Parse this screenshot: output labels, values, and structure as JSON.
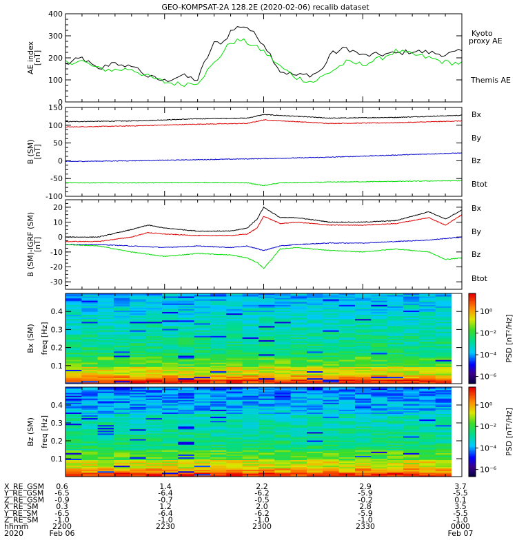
{
  "title": "GEO-KOMPSAT-2A 128.2E (2020-02-06) recalib dataset",
  "chart_data": [
    {
      "type": "line",
      "panel": "ae",
      "ylabel": [
        "AE index",
        "[nT]"
      ],
      "ylim": [
        0,
        400
      ],
      "yticks": [
        "0",
        "100",
        "200",
        "300",
        "400"
      ],
      "xlim": [
        0,
        120
      ],
      "series": [
        {
          "name": "Themis AE",
          "color": "#000000",
          "x": [
            0,
            5,
            10,
            15,
            18,
            20,
            25,
            30,
            35,
            40,
            42,
            45,
            48,
            50,
            53,
            55,
            60,
            65,
            70,
            75,
            78,
            80,
            85,
            90,
            95,
            100,
            105,
            110,
            115,
            120
          ],
          "values": [
            170,
            200,
            145,
            185,
            150,
            170,
            115,
            95,
            120,
            100,
            175,
            265,
            275,
            320,
            345,
            340,
            265,
            140,
            120,
            125,
            150,
            215,
            245,
            210,
            215,
            220,
            230,
            225,
            215,
            230
          ]
        },
        {
          "name": "Kyoto proxy AE",
          "color": "#00dd00",
          "x": [
            0,
            5,
            10,
            15,
            20,
            25,
            30,
            35,
            40,
            45,
            50,
            53,
            55,
            60,
            65,
            70,
            75,
            80,
            85,
            90,
            95,
            100,
            105,
            110,
            115,
            120
          ],
          "values": [
            180,
            185,
            150,
            145,
            150,
            115,
            90,
            80,
            90,
            175,
            270,
            280,
            270,
            230,
            160,
            110,
            90,
            135,
            180,
            170,
            195,
            230,
            215,
            200,
            180,
            175
          ]
        }
      ],
      "legend": [
        "Kyoto",
        "proxy AE",
        "Themis AE"
      ]
    },
    {
      "type": "line",
      "panel": "b_sm",
      "ylabel": [
        "B (SM)",
        "[nT]"
      ],
      "ylim": [
        -100,
        150
      ],
      "yticks": [
        "-100",
        "-50",
        "0",
        "50",
        "100",
        "150"
      ],
      "xlim": [
        0,
        120
      ],
      "series": [
        {
          "name": "Btot",
          "color": "#000000",
          "x": [
            0,
            20,
            40,
            55,
            60,
            80,
            100,
            120
          ],
          "values": [
            110,
            112,
            118,
            120,
            130,
            120,
            122,
            128
          ]
        },
        {
          "name": "Bx",
          "color": "#dd0000",
          "x": [
            0,
            20,
            40,
            55,
            60,
            80,
            100,
            120
          ],
          "values": [
            95,
            98,
            103,
            105,
            115,
            105,
            107,
            112
          ]
        },
        {
          "name": "By",
          "color": "#0000cc",
          "x": [
            0,
            20,
            40,
            60,
            80,
            100,
            120
          ],
          "values": [
            -2,
            0,
            3,
            6,
            10,
            16,
            22
          ]
        },
        {
          "name": "Bz",
          "color": "#00dd00",
          "x": [
            0,
            20,
            40,
            55,
            60,
            65,
            80,
            100,
            120
          ],
          "values": [
            -62,
            -62,
            -61,
            -62,
            -70,
            -62,
            -60,
            -58,
            -56
          ]
        }
      ],
      "legend": [
        "Bx",
        "By",
        "Bz",
        "Btot"
      ]
    },
    {
      "type": "line",
      "panel": "b_minus_igrf",
      "ylabel": [
        "B (SM)-IGRF (SM)",
        "[nT]"
      ],
      "ylim": [
        -35,
        25
      ],
      "yticks": [
        "-30",
        "-20",
        "-10",
        "0",
        "10",
        "20"
      ],
      "xlim": [
        0,
        120
      ],
      "series": [
        {
          "name": "Btot",
          "color": "#000000",
          "x": [
            0,
            10,
            20,
            25,
            30,
            40,
            50,
            55,
            58,
            60,
            65,
            70,
            80,
            90,
            100,
            110,
            115,
            120
          ],
          "values": [
            0,
            0,
            5,
            8,
            6,
            4,
            4,
            6,
            12,
            20,
            13,
            13,
            10,
            10,
            11,
            17,
            12,
            18
          ]
        },
        {
          "name": "Bx",
          "color": "#dd0000",
          "x": [
            0,
            10,
            20,
            25,
            30,
            40,
            50,
            55,
            58,
            60,
            65,
            70,
            80,
            90,
            100,
            110,
            115,
            120
          ],
          "values": [
            -3,
            -3,
            0,
            3,
            2,
            1,
            1,
            2,
            6,
            14,
            9,
            10,
            8,
            8,
            9,
            13,
            8,
            15
          ]
        },
        {
          "name": "By",
          "color": "#0000cc",
          "x": [
            0,
            10,
            20,
            30,
            40,
            50,
            55,
            60,
            65,
            70,
            80,
            90,
            100,
            110,
            120
          ],
          "values": [
            -5,
            -5,
            -6,
            -7,
            -6,
            -7,
            -6,
            -9,
            -6,
            -5,
            -4,
            -4,
            -3,
            -2,
            0
          ]
        },
        {
          "name": "Bz",
          "color": "#00dd00",
          "x": [
            0,
            10,
            20,
            30,
            40,
            50,
            55,
            58,
            60,
            62,
            65,
            70,
            80,
            90,
            100,
            110,
            115,
            120
          ],
          "values": [
            -5,
            -6,
            -10,
            -13,
            -11,
            -12,
            -14,
            -17,
            -21,
            -16,
            -8,
            -7,
            -9,
            -10,
            -8,
            -10,
            -15,
            -14
          ]
        }
      ],
      "legend": [
        "Bx",
        "By",
        "Bz",
        "Btot"
      ]
    },
    {
      "type": "heatmap",
      "panel": "bx_spec",
      "ylabel": [
        "Bx (SM)",
        "freq [Hz]"
      ],
      "ylim": [
        0,
        0.5
      ],
      "yticks": [
        "0.1",
        "0.2",
        "0.3",
        "0.4"
      ],
      "colorbar_label": "PSD [nT²/Hz]",
      "colorbar_ticks": [
        "10⁰",
        "10⁻²",
        "10⁻⁴",
        "10⁻⁶"
      ]
    },
    {
      "type": "heatmap",
      "panel": "bz_spec",
      "ylabel": [
        "Bz (SM)",
        "freq [Hz]"
      ],
      "ylim": [
        0,
        0.5
      ],
      "yticks": [
        "0.1",
        "0.2",
        "0.3",
        "0.4"
      ],
      "colorbar_label": "PSD [nT²/Hz]",
      "colorbar_ticks": [
        "10⁰",
        "10⁻²",
        "10⁻⁴",
        "10⁻⁶"
      ]
    }
  ],
  "ephemeris": {
    "row_labels": [
      "X_RE_GSM",
      "Y_RE_GSM",
      "Z_RE_GSM",
      "X_RE_SM",
      "Y_RE_SM",
      "Z_RE_SM",
      "hhmm",
      "2020"
    ],
    "columns": [
      [
        "0.6",
        "-6.5",
        "-0.9",
        "0.3",
        "-6.5",
        "-1.0",
        "2200",
        "Feb 06"
      ],
      [
        "1.4",
        "-6.4",
        "-0.7",
        "1.2",
        "-6.4",
        "-1.0",
        "2230",
        ""
      ],
      [
        "2.2",
        "-6.2",
        "-0.5",
        "2.0",
        "-6.2",
        "-1.0",
        "2300",
        ""
      ],
      [
        "2.9",
        "-5.9",
        "-0.2",
        "2.8",
        "-5.9",
        "-1.0",
        "2330",
        ""
      ],
      [
        "3.7",
        "-5.5",
        "0.1",
        "3.5",
        "-5.5",
        "-1.0",
        "0000",
        "Feb 07"
      ]
    ]
  }
}
